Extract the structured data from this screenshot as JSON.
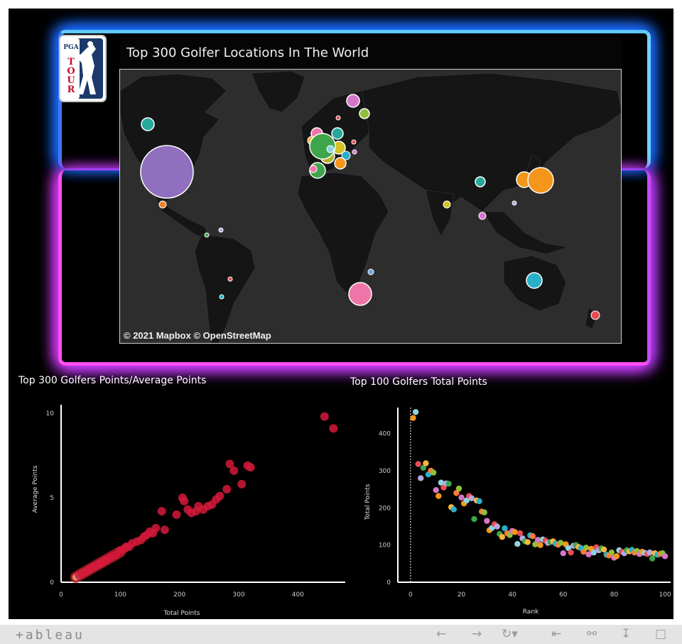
{
  "logo": {
    "top": "PGA",
    "bottom": "TOUR"
  },
  "map": {
    "title": "Top 300 Golfer Locations In The World",
    "credit": "© 2021 Mapbox  © OpenStreetMap",
    "bubbles": [
      {
        "region": "USA",
        "color": "#8f6fbe"
      },
      {
        "region": "Canada",
        "color": "#26a89a"
      },
      {
        "region": "Mexico",
        "color": "#f0832d"
      },
      {
        "region": "England",
        "color": "#3ea54a"
      },
      {
        "region": "Japan",
        "color": "#f5961c"
      },
      {
        "region": "South Africa",
        "color": "#ef74a8"
      },
      {
        "region": "Australia",
        "color": "#27b0c8"
      }
    ]
  },
  "scatter": {
    "title": "Top 300 Golfers Points/Average Points",
    "xlabel": "Total Points",
    "ylabel": "Average Points",
    "xticks": [
      "0",
      "100",
      "200",
      "300",
      "400"
    ],
    "yticks": [
      "0",
      "5",
      "10"
    ]
  },
  "rank_chart": {
    "title": "Top 100 Golfers Total Points",
    "xlabel": "Rank",
    "ylabel": "Total Points",
    "xticks": [
      "0",
      "20",
      "40",
      "60",
      "80",
      "100"
    ],
    "yticks": [
      "0",
      "100",
      "200",
      "300",
      "400"
    ]
  },
  "toolbar": {
    "brand": "+ableau",
    "icons": [
      "back-icon",
      "forward-icon",
      "redo-icon",
      "first-page-icon",
      "share-icon",
      "download-icon",
      "fullscreen-icon"
    ]
  },
  "chart_data": [
    {
      "type": "scatter",
      "title": "Top 300 Golfers Points/Average Points",
      "xlabel": "Total Points",
      "ylabel": "Average Points",
      "xlim": [
        0,
        480
      ],
      "ylim": [
        0,
        10.5
      ],
      "points": [
        [
          445,
          9.8
        ],
        [
          460,
          9.1
        ],
        [
          315,
          6.9
        ],
        [
          320,
          6.8
        ],
        [
          285,
          7.0
        ],
        [
          292,
          6.6
        ],
        [
          305,
          5.8
        ],
        [
          280,
          5.5
        ],
        [
          268,
          5.1
        ],
        [
          262,
          4.9
        ],
        [
          255,
          4.6
        ],
        [
          248,
          4.5
        ],
        [
          240,
          4.3
        ],
        [
          232,
          4.5
        ],
        [
          228,
          4.2
        ],
        [
          220,
          4.1
        ],
        [
          214,
          4.3
        ],
        [
          208,
          4.8
        ],
        [
          205,
          5.0
        ],
        [
          195,
          4.0
        ],
        [
          170,
          4.2
        ],
        [
          175,
          3.1
        ],
        [
          160,
          3.2
        ],
        [
          155,
          2.9
        ],
        [
          150,
          3.0
        ],
        [
          145,
          2.8
        ],
        [
          140,
          2.7
        ],
        [
          135,
          2.5
        ],
        [
          128,
          2.4
        ],
        [
          120,
          2.3
        ],
        [
          115,
          2.1
        ],
        [
          110,
          2.1
        ],
        [
          108,
          2.0
        ],
        [
          102,
          1.9
        ],
        [
          98,
          1.8
        ],
        [
          92,
          1.6
        ],
        [
          85,
          1.5
        ],
        [
          80,
          1.4
        ],
        [
          75,
          1.3
        ],
        [
          70,
          1.2
        ],
        [
          65,
          1.1
        ],
        [
          60,
          1.0
        ],
        [
          55,
          0.9
        ],
        [
          50,
          0.8
        ],
        [
          45,
          0.7
        ],
        [
          40,
          0.6
        ],
        [
          35,
          0.5
        ],
        [
          30,
          0.4
        ]
      ]
    },
    {
      "type": "scatter",
      "title": "Top 100 Golfers Total Points",
      "xlabel": "Rank",
      "ylabel": "Total Points",
      "xlim": [
        -5,
        105
      ],
      "ylim": [
        0,
        470
      ],
      "points": [
        [
          1,
          442
        ],
        [
          2,
          458
        ],
        [
          3,
          318
        ],
        [
          4,
          280
        ],
        [
          5,
          308
        ],
        [
          6,
          320
        ],
        [
          7,
          290
        ],
        [
          8,
          300
        ],
        [
          9,
          295
        ],
        [
          10,
          248
        ],
        [
          11,
          232
        ],
        [
          12,
          268
        ],
        [
          13,
          255
        ],
        [
          14,
          266
        ],
        [
          15,
          265
        ],
        [
          16,
          202
        ],
        [
          17,
          196
        ],
        [
          18,
          240
        ],
        [
          19,
          252
        ],
        [
          20,
          228
        ],
        [
          21,
          212
        ],
        [
          22,
          220
        ],
        [
          23,
          232
        ],
        [
          24,
          226
        ],
        [
          25,
          170
        ],
        [
          26,
          220
        ],
        [
          27,
          218
        ],
        [
          28,
          190
        ],
        [
          29,
          188
        ],
        [
          30,
          165
        ],
        [
          31,
          140
        ],
        [
          32,
          146
        ],
        [
          33,
          156
        ],
        [
          34,
          150
        ],
        [
          35,
          130
        ],
        [
          36,
          122
        ],
        [
          37,
          145
        ],
        [
          38,
          132
        ],
        [
          39,
          127
        ],
        [
          40,
          138
        ],
        [
          41,
          135
        ],
        [
          42,
          103
        ],
        [
          43,
          132
        ],
        [
          44,
          118
        ],
        [
          45,
          110
        ],
        [
          46,
          108
        ],
        [
          47,
          126
        ],
        [
          48,
          124
        ],
        [
          49,
          102
        ],
        [
          50,
          114
        ],
        [
          51,
          100
        ],
        [
          52,
          115
        ],
        [
          53,
          112
        ],
        [
          54,
          106
        ],
        [
          55,
          108
        ],
        [
          56,
          110
        ],
        [
          57,
          104
        ],
        [
          58,
          101
        ],
        [
          59,
          106
        ],
        [
          60,
          78
        ],
        [
          61,
          102
        ],
        [
          62,
          92
        ],
        [
          63,
          80
        ],
        [
          64,
          98
        ],
        [
          65,
          100
        ],
        [
          66,
          95
        ],
        [
          67,
          92
        ],
        [
          68,
          82
        ],
        [
          69,
          93
        ],
        [
          70,
          75
        ],
        [
          71,
          90
        ],
        [
          72,
          80
        ],
        [
          73,
          94
        ],
        [
          74,
          86
        ],
        [
          75,
          91
        ],
        [
          76,
          88
        ],
        [
          77,
          74
        ],
        [
          78,
          72
        ],
        [
          79,
          80
        ],
        [
          80,
          66
        ],
        [
          81,
          70
        ],
        [
          82,
          86
        ],
        [
          83,
          82
        ],
        [
          84,
          78
        ],
        [
          85,
          86
        ],
        [
          86,
          83
        ],
        [
          87,
          87
        ],
        [
          88,
          80
        ],
        [
          89,
          84
        ],
        [
          90,
          76
        ],
        [
          91,
          82
        ],
        [
          92,
          79
        ],
        [
          93,
          76
        ],
        [
          94,
          80
        ],
        [
          95,
          64
        ],
        [
          96,
          78
        ],
        [
          97,
          74
        ],
        [
          98,
          76
        ],
        [
          99,
          78
        ],
        [
          100,
          70
        ]
      ]
    }
  ]
}
